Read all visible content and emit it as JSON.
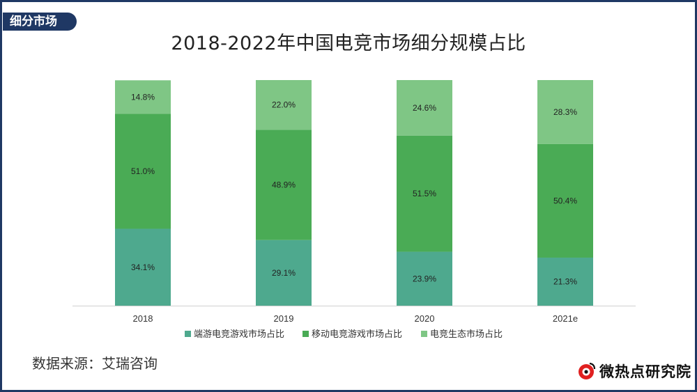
{
  "section_tag": "细分市场",
  "source": "数据来源：艾瑞咨询",
  "logo_text": "微热点研究院",
  "chart_data": {
    "type": "bar",
    "stacked": true,
    "percent": true,
    "title": "2018-2022年中国电竞市场细分规模占比",
    "categories": [
      "2018",
      "2019",
      "2020",
      "2021e"
    ],
    "series": [
      {
        "name": "端游电竞游戏市场占比",
        "color": "#4ea98e",
        "values": [
          34.1,
          29.1,
          23.9,
          21.3
        ],
        "labels": [
          "34.1%",
          "29.1%",
          "23.9%",
          "21.3%"
        ]
      },
      {
        "name": "移动电竞游戏市场占比",
        "color": "#4aab55",
        "values": [
          51.0,
          48.9,
          51.5,
          50.4
        ],
        "labels": [
          "51.0%",
          "48.9%",
          "51.5%",
          "50.4%"
        ]
      },
      {
        "name": "电竞生态市场占比",
        "color": "#7fc685",
        "values": [
          14.8,
          22.0,
          24.6,
          28.3
        ],
        "labels": [
          "14.8%",
          "22.0%",
          "24.6%",
          "28.3%"
        ]
      }
    ],
    "ylim": [
      0,
      100
    ],
    "grid": false,
    "legend": "bottom"
  }
}
